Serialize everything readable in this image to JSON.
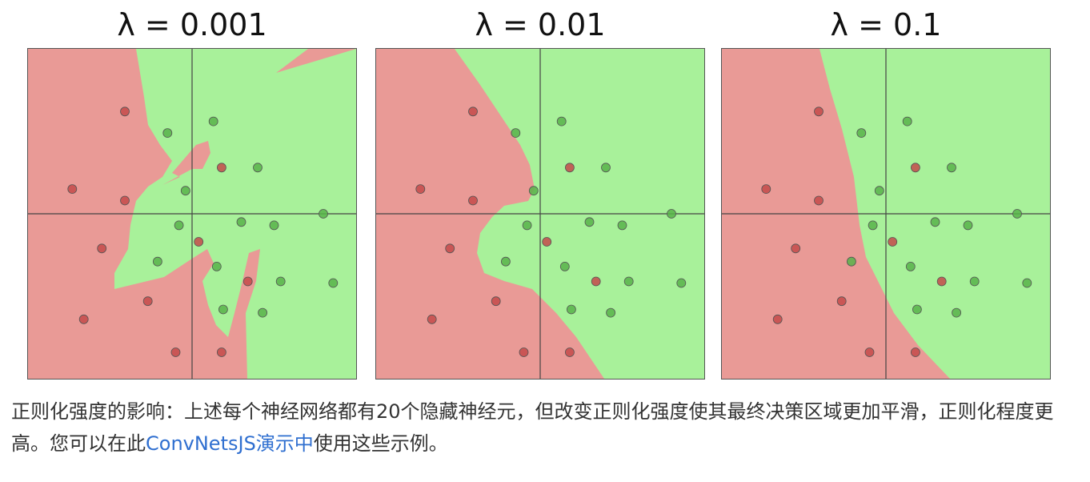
{
  "colors": {
    "red_region": "#e99a96",
    "green_region": "#a8f19a",
    "red_point": "#c44a4a",
    "green_point": "#58b34a",
    "axis": "#444444",
    "link": "#2f6fd0"
  },
  "chart_data": [
    {
      "type": "scatter",
      "title": "λ = 0.001",
      "regularization": 0.001,
      "xlim": [
        -1,
        1
      ],
      "ylim": [
        -1,
        1
      ],
      "series": [
        {
          "name": "red",
          "points": [
            [
              -0.41,
              0.62
            ],
            [
              -0.73,
              0.15
            ],
            [
              -0.41,
              0.08
            ],
            [
              -0.55,
              -0.21
            ],
            [
              -0.27,
              -0.53
            ],
            [
              -0.66,
              -0.64
            ],
            [
              -0.1,
              -0.84
            ],
            [
              0.18,
              0.28
            ],
            [
              0.04,
              -0.17
            ],
            [
              0.34,
              -0.41
            ],
            [
              0.18,
              -0.84
            ]
          ]
        },
        {
          "name": "green",
          "points": [
            [
              -0.15,
              0.49
            ],
            [
              0.13,
              0.56
            ],
            [
              0.4,
              0.28
            ],
            [
              -0.04,
              0.14
            ],
            [
              -0.08,
              -0.07
            ],
            [
              0.3,
              -0.05
            ],
            [
              0.5,
              -0.07
            ],
            [
              0.8,
              0.0
            ],
            [
              -0.21,
              -0.29
            ],
            [
              0.15,
              -0.32
            ],
            [
              0.54,
              -0.41
            ],
            [
              0.86,
              -0.42
            ],
            [
              0.19,
              -0.58
            ],
            [
              0.43,
              -0.6
            ]
          ]
        }
      ]
    },
    {
      "type": "scatter",
      "title": "λ = 0.01",
      "regularization": 0.01,
      "xlim": [
        -1,
        1
      ],
      "ylim": [
        -1,
        1
      ],
      "series": [
        {
          "name": "red",
          "points": [
            [
              -0.41,
              0.62
            ],
            [
              -0.73,
              0.15
            ],
            [
              -0.41,
              0.08
            ],
            [
              -0.55,
              -0.21
            ],
            [
              -0.27,
              -0.53
            ],
            [
              -0.66,
              -0.64
            ],
            [
              -0.1,
              -0.84
            ],
            [
              0.18,
              0.28
            ],
            [
              0.04,
              -0.17
            ],
            [
              0.34,
              -0.41
            ],
            [
              0.18,
              -0.84
            ]
          ]
        },
        {
          "name": "green",
          "points": [
            [
              -0.15,
              0.49
            ],
            [
              0.13,
              0.56
            ],
            [
              0.4,
              0.28
            ],
            [
              -0.04,
              0.14
            ],
            [
              -0.08,
              -0.07
            ],
            [
              0.3,
              -0.05
            ],
            [
              0.5,
              -0.07
            ],
            [
              0.8,
              0.0
            ],
            [
              -0.21,
              -0.29
            ],
            [
              0.15,
              -0.32
            ],
            [
              0.54,
              -0.41
            ],
            [
              0.86,
              -0.42
            ],
            [
              0.19,
              -0.58
            ],
            [
              0.43,
              -0.6
            ]
          ]
        }
      ]
    },
    {
      "type": "scatter",
      "title": "λ = 0.1",
      "regularization": 0.1,
      "xlim": [
        -1,
        1
      ],
      "ylim": [
        -1,
        1
      ],
      "series": [
        {
          "name": "red",
          "points": [
            [
              -0.41,
              0.62
            ],
            [
              -0.73,
              0.15
            ],
            [
              -0.41,
              0.08
            ],
            [
              -0.55,
              -0.21
            ],
            [
              -0.27,
              -0.53
            ],
            [
              -0.66,
              -0.64
            ],
            [
              -0.1,
              -0.84
            ],
            [
              0.18,
              0.28
            ],
            [
              0.04,
              -0.17
            ],
            [
              0.34,
              -0.41
            ],
            [
              0.18,
              -0.84
            ]
          ]
        },
        {
          "name": "green",
          "points": [
            [
              -0.15,
              0.49
            ],
            [
              0.13,
              0.56
            ],
            [
              0.4,
              0.28
            ],
            [
              -0.04,
              0.14
            ],
            [
              -0.08,
              -0.07
            ],
            [
              0.3,
              -0.05
            ],
            [
              0.5,
              -0.07
            ],
            [
              0.8,
              0.0
            ],
            [
              -0.21,
              -0.29
            ],
            [
              0.15,
              -0.32
            ],
            [
              0.54,
              -0.41
            ],
            [
              0.86,
              -0.42
            ],
            [
              0.19,
              -0.58
            ],
            [
              0.43,
              -0.6
            ]
          ]
        }
      ]
    }
  ],
  "caption": {
    "text_before_link": "正则化强度的影响：上述每个神经网络都有20个隐藏神经元，但改变正则化强度使其最终决策区域更加平滑，正则化程度更高。您可以在此",
    "link_text": "ConvNetsJS演示中",
    "text_after_link": "使用这些示例。"
  }
}
